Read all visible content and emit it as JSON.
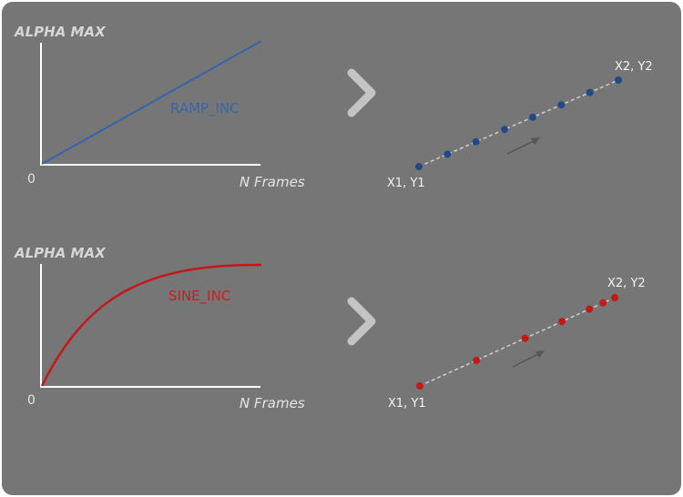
{
  "colors": {
    "panel": "#767676",
    "axis": "#ffffff",
    "ramp": "#3a64a8",
    "sine": "#c41818",
    "arrow": "#c4c4c4",
    "dash": "#cfcfcf",
    "dot_ramp": "#24478a",
    "dot_sine": "#c41818"
  },
  "ramp": {
    "ylabel": "ALPHA MAX",
    "xlabel": "N Frames",
    "origin": "0",
    "curve_label": "RAMP_INC",
    "start_label": "X1, Y1",
    "end_label": "X2, Y2",
    "icon": "chevron-right-icon"
  },
  "sine": {
    "ylabel": "ALPHA MAX",
    "xlabel": "N Frames",
    "origin": "0",
    "curve_label": "SINE_INC",
    "start_label": "X1, Y1",
    "end_label": "X2, Y2",
    "icon": "chevron-right-icon"
  },
  "chart_data": [
    {
      "type": "line",
      "ylabel": "ALPHA MAX",
      "xlabel": "N Frames",
      "series": [
        {
          "name": "RAMP_INC",
          "x": [
            0,
            1
          ],
          "y": [
            0,
            1
          ]
        }
      ],
      "points_t": [
        0,
        0.143,
        0.286,
        0.429,
        0.571,
        0.714,
        0.857,
        1
      ]
    },
    {
      "type": "line",
      "ylabel": "ALPHA MAX",
      "xlabel": "N Frames",
      "series": [
        {
          "name": "SINE_INC",
          "x": [
            0,
            0.25,
            0.5,
            0.75,
            1
          ],
          "y": [
            0,
            0.58,
            0.88,
            0.99,
            1
          ]
        }
      ],
      "points_t": [
        0,
        0.29,
        0.54,
        0.73,
        0.87,
        0.94,
        1
      ]
    }
  ]
}
